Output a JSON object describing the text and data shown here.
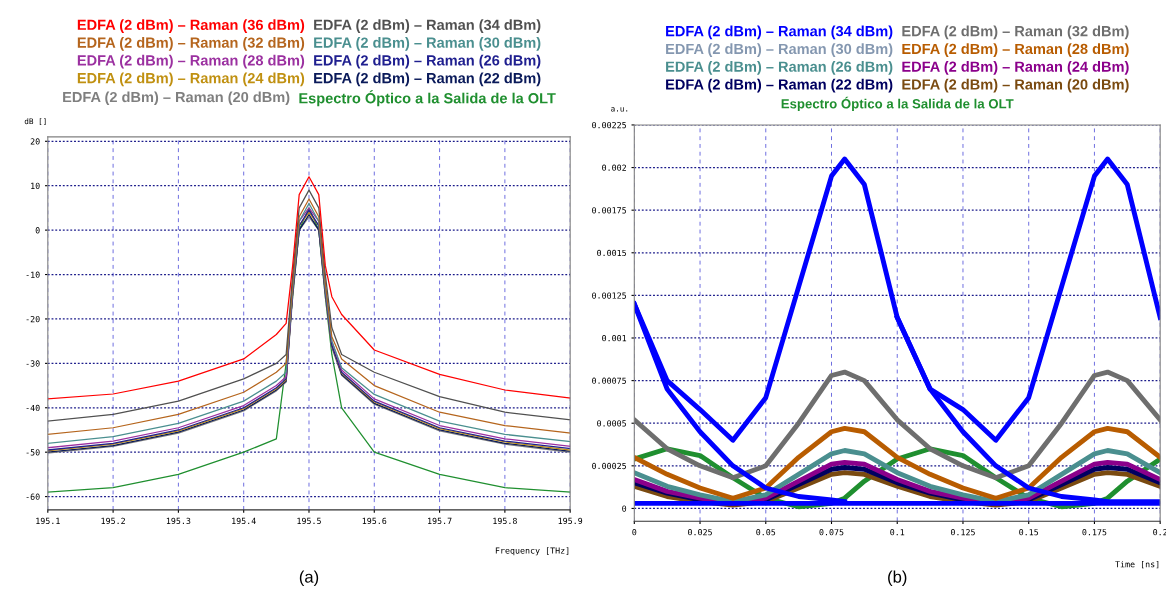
{
  "chart_data": [
    {
      "type": "line",
      "xlabel": "Frequency [THz]",
      "ylabel": "dB []",
      "legend": "top",
      "grid": true,
      "annotations": [
        "(a)"
      ],
      "x": [
        195.1,
        195.2,
        195.3,
        195.4,
        195.45,
        195.465,
        195.475,
        195.485,
        195.5,
        195.515,
        195.525,
        195.535,
        195.55,
        195.6,
        195.7,
        195.8,
        195.9
      ],
      "xlim": [
        195.1,
        195.9
      ],
      "xticks": [
        195.1,
        195.2,
        195.3,
        195.4,
        195.5,
        195.6,
        195.7,
        195.8,
        195.9
      ],
      "ylim": [
        -63,
        21
      ],
      "yticks": [
        -60,
        -50,
        -40,
        -30,
        -20,
        -10,
        0,
        10,
        20
      ],
      "series": [
        {
          "name": "EDFA (2 dBm) – Raman (36 dBm)",
          "color": "#ff0000",
          "values": [
            -38,
            -36.9,
            -34,
            -29,
            -23.5,
            -21,
            -8,
            8,
            12,
            8,
            -8,
            -15,
            -19,
            -27,
            -32.5,
            -36,
            -37.8
          ]
        },
        {
          "name": "EDFA (2 dBm) – Raman (34 dBm)",
          "color": "#505050",
          "values": [
            -43,
            -41.5,
            -38.5,
            -33.5,
            -30,
            -28,
            -10,
            5,
            9,
            5,
            -10,
            -22,
            -28,
            -32,
            -37.5,
            -41,
            -42.7
          ]
        },
        {
          "name": "EDFA (2 dBm) – Raman (32 dBm)",
          "color": "#b5651d",
          "values": [
            -46,
            -44.5,
            -41.5,
            -36.5,
            -32,
            -30,
            -12,
            3,
            7,
            3,
            -12,
            -24,
            -29,
            -35,
            -41,
            -44,
            -45.7
          ]
        },
        {
          "name": "EDFA (2 dBm) – Raman (30 dBm)",
          "color": "#4a8f8f",
          "values": [
            -48,
            -46.5,
            -43.5,
            -38.5,
            -34,
            -32,
            -13,
            2,
            6,
            2,
            -13,
            -25,
            -31,
            -37,
            -43,
            -46,
            -47.6
          ]
        },
        {
          "name": "EDFA (2 dBm) – Raman (28 dBm)",
          "color": "#9b30a0",
          "values": [
            -49,
            -47.5,
            -44.5,
            -39.5,
            -35,
            -33,
            -13,
            2,
            5,
            2,
            -13,
            -25,
            -31.5,
            -38,
            -44,
            -47,
            -48.7
          ]
        },
        {
          "name": "EDFA (2 dBm) – Raman (26 dBm)",
          "color": "#1f1f8f",
          "values": [
            -49.5,
            -48,
            -45,
            -40,
            -35.5,
            -33.5,
            -14,
            1,
            4.5,
            1,
            -14,
            -26,
            -32,
            -38.5,
            -44.5,
            -47.5,
            -49.2
          ]
        },
        {
          "name": "EDFA (2 dBm) – Raman (24 dBm)",
          "color": "#c09010",
          "values": [
            -49.7,
            -48.2,
            -45.2,
            -40.2,
            -35.7,
            -33.7,
            -14,
            1,
            4,
            1,
            -14,
            -26,
            -32.2,
            -38.7,
            -44.7,
            -47.7,
            -49.5
          ]
        },
        {
          "name": "EDFA (2 dBm) – Raman (22 dBm)",
          "color": "#0a1a5a",
          "values": [
            -50,
            -48.5,
            -45.5,
            -40.5,
            -36,
            -34,
            -14,
            0,
            3.5,
            0,
            -14,
            -26,
            -32.5,
            -39,
            -45,
            -48,
            -49.8
          ]
        },
        {
          "name": "EDFA (2 dBm) – Raman (20 dBm)",
          "color": "#7f7f7f",
          "values": [
            -50.2,
            -48.7,
            -45.7,
            -40.7,
            -36.2,
            -34.2,
            -15,
            0,
            3,
            0,
            -15,
            -26.5,
            -32.7,
            -39.2,
            -45.2,
            -48.2,
            -50
          ]
        },
        {
          "name": "Espectro Óptico a la Salida de la OLT",
          "color": "#1f8f2f",
          "values": [
            -59,
            -58,
            -55,
            -50,
            -47,
            -30,
            -15,
            0,
            5,
            0,
            -15,
            -28,
            -40,
            -50,
            -55,
            -58,
            -59
          ]
        }
      ]
    },
    {
      "type": "line",
      "xlabel": "Time [ns]",
      "ylabel": "a.u.",
      "legend": "top",
      "grid": true,
      "annotations": [
        "(b)"
      ],
      "x": [
        0,
        0.0125,
        0.025,
        0.0375,
        0.05,
        0.0625,
        0.075,
        0.08,
        0.0875,
        0.1,
        0.1125,
        0.125,
        0.1375,
        0.15,
        0.1625,
        0.175,
        0.18,
        0.1875,
        0.2
      ],
      "xlim": [
        0,
        0.2
      ],
      "xticks": [
        0,
        0.025,
        0.05,
        0.075,
        0.1,
        0.125,
        0.15,
        0.175,
        0.2
      ],
      "ylim": [
        -7.5e-05,
        0.00225
      ],
      "yticks": [
        0,
        0.00025,
        0.0005,
        0.00075,
        0.001,
        0.00125,
        0.0015,
        0.00175,
        0.002,
        0.00225
      ],
      "series": [
        {
          "name": "EDFA (2 dBm) – Raman (34 dBm)",
          "color": "#0000ff",
          "values": [
            0.0012,
            0.00075,
            0.00058,
            0.0004,
            0.00065,
            0.0013,
            0.00195,
            0.00205,
            0.0019,
            0.00112,
            0.0007,
            0.00058,
            0.0004,
            0.00065,
            0.0013,
            0.00195,
            0.00205,
            0.0019,
            0.00112
          ]
        },
        {
          "color": "#0000ff",
          "values": [
            0.0012,
            0.0007,
            0.00045,
            0.00025,
            0.00012,
            7e-05,
            5e-05,
            4e-05,
            null,
            0.00112,
            0.0007,
            0.00045,
            0.00025,
            0.00012,
            7e-05,
            5e-05,
            4e-05,
            4e-05,
            4e-05
          ]
        },
        {
          "color": "#0000ff",
          "values": [
            3e-05,
            3e-05,
            3e-05,
            3e-05,
            3e-05,
            3e-05,
            3e-05,
            3e-05,
            3e-05,
            3e-05,
            3e-05,
            3e-05,
            3e-05,
            3e-05,
            3e-05,
            3e-05,
            3e-05,
            3e-05,
            3e-05
          ]
        },
        {
          "name": "EDFA (2 dBm) – Raman (32 dBm)",
          "color": "#6e6e6e",
          "values": [
            0.00052,
            0.00035,
            0.00025,
            0.00018,
            0.00025,
            0.0005,
            0.00078,
            0.0008,
            0.00075,
            0.00052,
            0.00035,
            0.00025,
            0.00018,
            0.00025,
            0.0005,
            0.00078,
            0.0008,
            0.00075,
            0.00052
          ]
        },
        {
          "name": "EDFA (2 dBm) – Raman (30 dBm)",
          "color": "#8497b0",
          "values": [
            null,
            null,
            null,
            null,
            null,
            null,
            null,
            null,
            null,
            null,
            null,
            null,
            null,
            null,
            null,
            null,
            null,
            null,
            null
          ]
        },
        {
          "name": "EDFA (2 dBm) – Raman (28 dBm)",
          "color": "#b85c00",
          "values": [
            0.0003,
            0.0002,
            0.00012,
            6e-05,
            0.00012,
            0.0003,
            0.00045,
            0.00047,
            0.00045,
            0.0003,
            0.0002,
            0.00012,
            6e-05,
            0.00012,
            0.0003,
            0.00045,
            0.00047,
            0.00045,
            0.0003
          ]
        },
        {
          "name": "EDFA (2 dBm) – Raman (26 dBm)",
          "color": "#4a8f8f",
          "values": [
            0.00021,
            0.00013,
            8e-05,
            4e-05,
            8e-05,
            0.0002,
            0.00032,
            0.00034,
            0.00032,
            0.00021,
            0.00013,
            8e-05,
            4e-05,
            8e-05,
            0.0002,
            0.00032,
            0.00034,
            0.00032,
            0.00021
          ]
        },
        {
          "name": "EDFA (2 dBm) – Raman (24 dBm)",
          "color": "#8b008b",
          "values": [
            0.00017,
            0.0001,
            6e-05,
            3e-05,
            6e-05,
            0.00016,
            0.00026,
            0.00027,
            0.00026,
            0.00017,
            0.0001,
            6e-05,
            3e-05,
            6e-05,
            0.00016,
            0.00026,
            0.00027,
            0.00026,
            0.00017
          ]
        },
        {
          "name": "EDFA (2 dBm) – Raman (22 dBm)",
          "color": "#000060",
          "values": [
            0.00015,
            9e-05,
            5e-05,
            3e-05,
            5e-05,
            0.00014,
            0.00023,
            0.00024,
            0.00023,
            0.00015,
            9e-05,
            5e-05,
            3e-05,
            5e-05,
            0.00014,
            0.00023,
            0.00024,
            0.00023,
            0.00015
          ]
        },
        {
          "name": "EDFA (2 dBm) – Raman (20 dBm)",
          "color": "#7a4a10",
          "values": [
            0.00013,
            7e-05,
            4e-05,
            2e-05,
            4e-05,
            0.00012,
            0.0002,
            0.00021,
            0.0002,
            0.00013,
            7e-05,
            4e-05,
            2e-05,
            4e-05,
            0.00012,
            0.0002,
            0.00021,
            0.0002,
            0.00013
          ]
        },
        {
          "name": "Espectro Óptico a la Salida de la OLT",
          "color": "#1f8f2f",
          "values": [
            0.00029,
            0.00035,
            0.00031,
            0.00018,
            6e-05,
            1e-05,
            3e-05,
            6e-05,
            0.00016,
            0.00029,
            0.00035,
            0.00031,
            0.00018,
            6e-05,
            1e-05,
            3e-05,
            6e-05,
            0.00016,
            0.00029
          ]
        }
      ]
    }
  ]
}
